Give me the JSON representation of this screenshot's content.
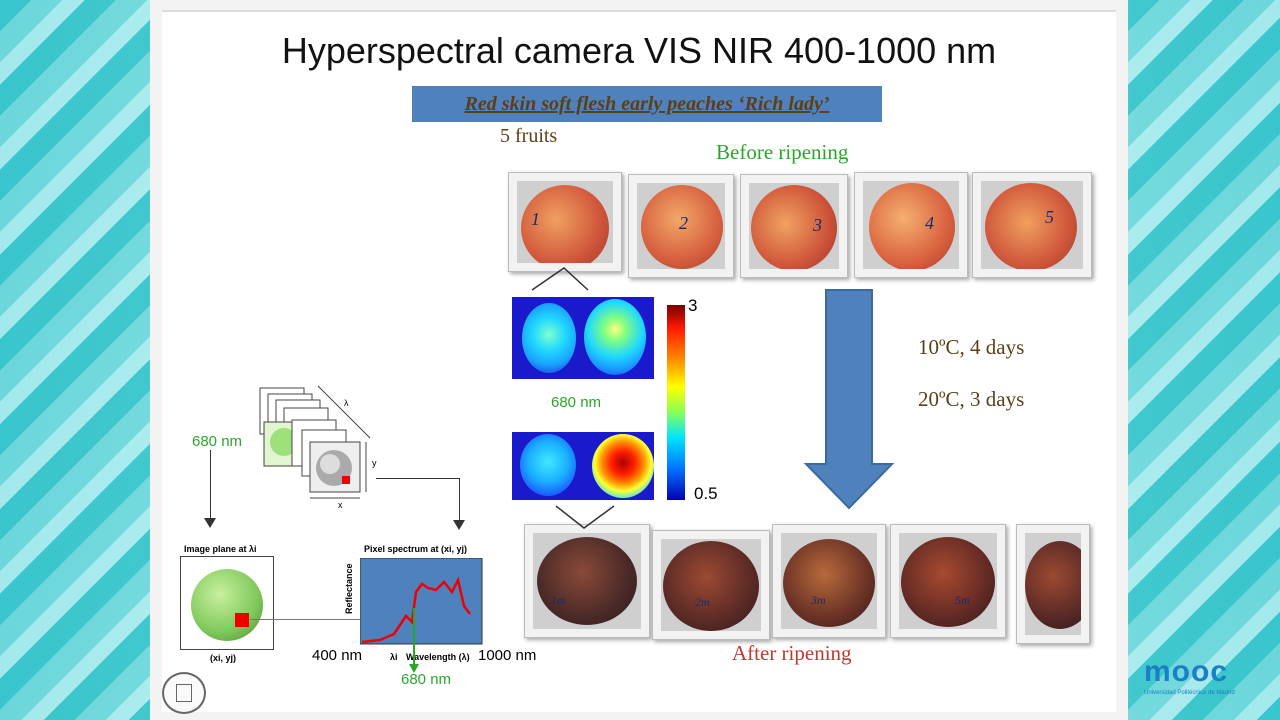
{
  "title": "Hyperspectral  camera VIS NIR 400-1000 nm",
  "banner": "Red skin soft flesh early peaches ‘Rich lady’",
  "fruits_label": "5 fruits",
  "before_label": "Before ripening",
  "after_label": "After ripening",
  "condition_1": "10ºC, 4 days",
  "condition_2": "20ºC, 3 days",
  "heatmap_wavelength": "680 nm",
  "colorbar_max": "3",
  "colorbar_min": "0.5",
  "fruit_numbers": [
    "1",
    "2",
    "3",
    "4",
    "5"
  ],
  "after_numbers": [
    "1m",
    "2m",
    "3m",
    "5m"
  ],
  "cube": {
    "wavelength_label": "680 nm",
    "lambda": "λ",
    "x": "x",
    "y": "y",
    "image_plane": "Image plane at λi",
    "pixel_spectrum": "Pixel spectrum at (xi, yj)",
    "coords": "(xi, yj)",
    "reflectance": "Reflectance",
    "lambda_i": "λi",
    "wavelength_axis": "Wavelength (λ)",
    "range_start": "400 nm",
    "range_end": "1000 nm",
    "marker": "680 nm"
  },
  "logo": {
    "name": "mooc",
    "subtitle": "Universidad Politécnica de Madrid"
  },
  "colors": {
    "banner": "#4f81bd",
    "arrow": "#4f81bd",
    "green": "#2aa72a",
    "red_text": "#c0392b"
  }
}
